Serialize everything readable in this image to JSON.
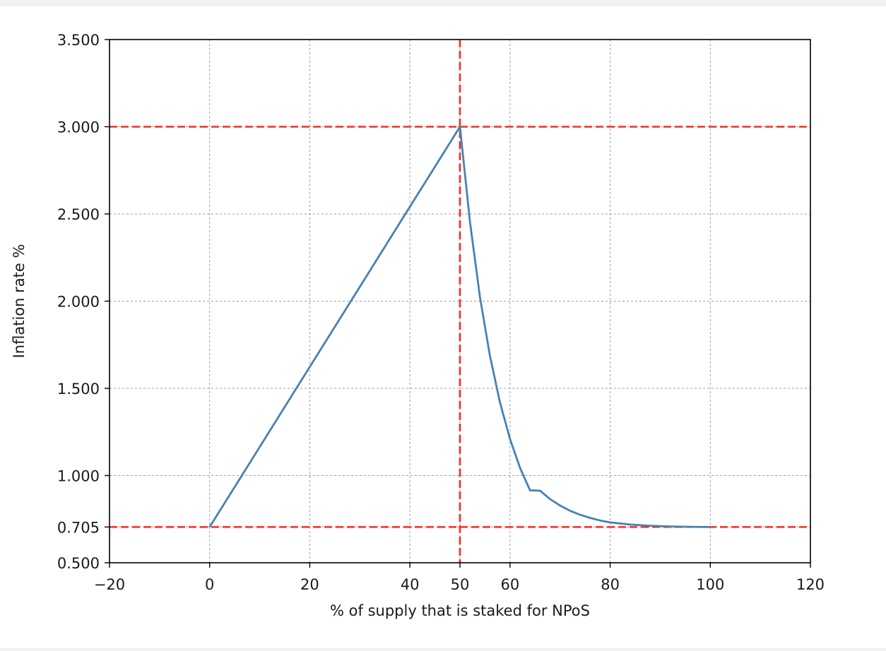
{
  "chart_data": {
    "type": "line",
    "xlabel": "% of supply that is staked for NPoS",
    "ylabel": "Inflation rate %",
    "xlim": [
      -20,
      120
    ],
    "ylim": [
      0.5,
      3.5
    ],
    "x_ticks": [
      -20,
      0,
      20,
      40,
      50,
      60,
      80,
      100,
      120
    ],
    "x_tick_labels": [
      "−20",
      "0",
      "20",
      "40",
      "50",
      "60",
      "80",
      "100",
      "120"
    ],
    "y_ticks": [
      0.5,
      0.705,
      1.0,
      1.5,
      2.0,
      2.5,
      3.0,
      3.5
    ],
    "y_tick_labels": [
      "0.500",
      "0.705",
      "1.000",
      "1.500",
      "2.000",
      "2.500",
      "3.000",
      "3.500"
    ],
    "grid": true,
    "series": [
      {
        "color": "#4682b4",
        "x": [
          0,
          10,
          20,
          30,
          40,
          50,
          52,
          54,
          56,
          58,
          60,
          62,
          64,
          66,
          68,
          70,
          72,
          74,
          76,
          78,
          80,
          84,
          88,
          92,
          96,
          100
        ],
        "y": [
          0.705,
          1.164,
          1.623,
          2.082,
          2.541,
          3.0,
          2.454,
          2.023,
          1.685,
          1.418,
          1.209,
          1.044,
          0.915,
          0.913,
          0.865,
          0.828,
          0.798,
          0.775,
          0.757,
          0.742,
          0.731,
          0.719,
          0.712,
          0.708,
          0.706,
          0.705
        ]
      }
    ],
    "reference_lines": [
      {
        "orientation": "horizontal",
        "value": 3.0,
        "style": "dashed",
        "color": "#ff2a1a"
      },
      {
        "orientation": "horizontal",
        "value": 0.705,
        "style": "dashed",
        "color": "#ff2a1a"
      },
      {
        "orientation": "vertical",
        "value": 50,
        "style": "dashed",
        "color": "#ff2a1a"
      }
    ]
  }
}
